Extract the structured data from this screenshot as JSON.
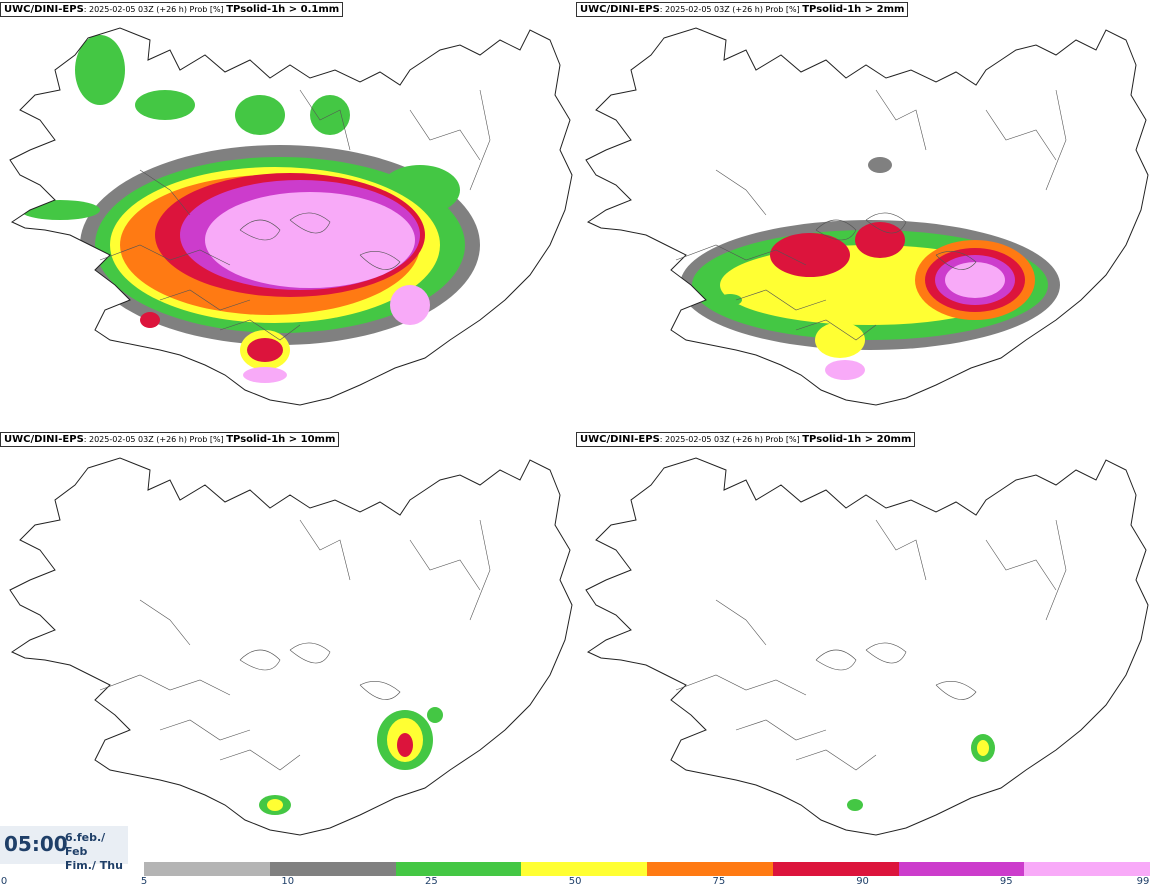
{
  "panels": [
    {
      "model": "UWC/DINI-EPS",
      "meta": ": 2025-02-05 03Z (+26 h) Prob [%] ",
      "variable": "TPsolid-1h > 0.1mm"
    },
    {
      "model": "UWC/DINI-EPS",
      "meta": ": 2025-02-05 03Z (+26 h) Prob [%] ",
      "variable": "TPsolid-1h > 2mm"
    },
    {
      "model": "UWC/DINI-EPS",
      "meta": ": 2025-02-05 03Z (+26 h) Prob [%] ",
      "variable": "TPsolid-1h > 10mm"
    },
    {
      "model": "UWC/DINI-EPS",
      "meta": ": 2025-02-05 03Z (+26 h) Prob [%] ",
      "variable": "TPsolid-1h > 20mm"
    }
  ],
  "time": {
    "hour": "05:00",
    "date_line1": "6.feb./ Feb",
    "date_line2": "Fim./ Thu"
  },
  "legend": {
    "ticks": [
      "0",
      "5",
      "10",
      "25",
      "50",
      "75",
      "90",
      "95",
      "99"
    ],
    "colors": [
      "#ffffff",
      "#b4b4b4",
      "#808080",
      "#44c744",
      "#ffff33",
      "#ff7a13",
      "#dc143c",
      "#cc3ccc",
      "#f8aaf8"
    ]
  }
}
